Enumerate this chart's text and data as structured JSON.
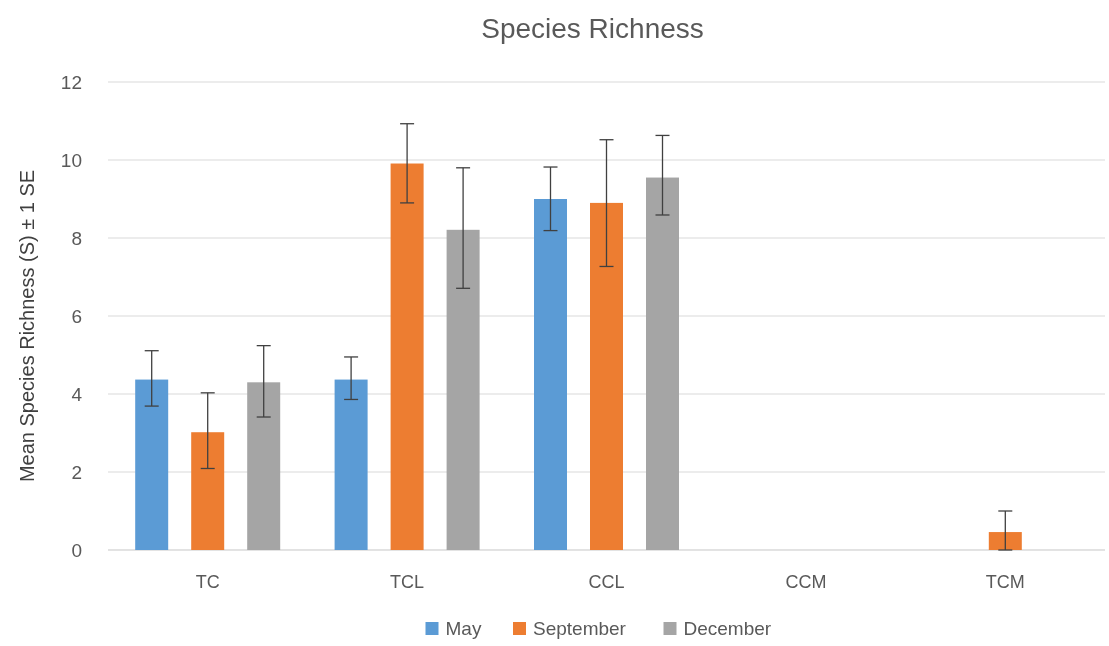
{
  "chart_data": {
    "type": "bar",
    "title": "Species Richness",
    "ylabel": "Mean Species Richness (S) ± 1 SE",
    "categories": [
      "TC",
      "TCL",
      "CCL",
      "CCM",
      "TCM"
    ],
    "series": [
      {
        "name": "May",
        "color": "#5b9bd5",
        "values": [
          4.37,
          4.37,
          9.0,
          0,
          0
        ],
        "errors": [
          [
            3.69,
            5.11
          ],
          [
            3.86,
            4.95
          ],
          [
            8.19,
            9.82
          ],
          null,
          null
        ]
      },
      {
        "name": "September",
        "color": "#ed7d31",
        "values": [
          3.02,
          9.91,
          8.9,
          0,
          0.46
        ],
        "errors": [
          [
            2.09,
            4.03
          ],
          [
            8.9,
            10.93
          ],
          [
            7.27,
            10.52
          ],
          null,
          [
            0,
            1.0
          ]
        ]
      },
      {
        "name": "December",
        "color": "#a5a5a5",
        "values": [
          4.3,
          8.21,
          9.55,
          0,
          0
        ],
        "errors": [
          [
            3.41,
            5.24
          ],
          [
            6.71,
            9.8
          ],
          [
            8.59,
            10.63
          ],
          null,
          null
        ]
      }
    ],
    "ylim": [
      0,
      12
    ],
    "yticks": [
      0,
      2,
      4,
      6,
      8,
      10,
      12
    ],
    "grid": "y",
    "legend": "bottom"
  }
}
